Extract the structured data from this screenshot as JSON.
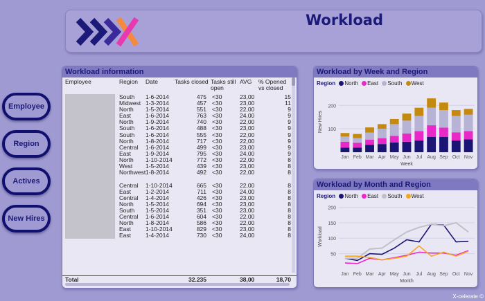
{
  "header": {
    "title": "Workload"
  },
  "colors": {
    "north": "#1a1475",
    "east": "#e829c8",
    "south": "#b6b3d4",
    "west": "#c48a10",
    "line_south": "#c0c0c6",
    "line_west": "#f5a623",
    "accent": "#7f79c2"
  },
  "nav": [
    {
      "label": "Employee"
    },
    {
      "label": "Region"
    },
    {
      "label": "Actives"
    },
    {
      "label": "New Hires"
    }
  ],
  "table": {
    "title": "Workload information",
    "columns": [
      "Employee",
      "Region",
      "Date",
      "Tasks closed",
      "Tasks still open",
      "AVG",
      "% Opened vs closed"
    ],
    "rows": [
      {
        "employee": "",
        "region": "South",
        "date": "1-6-2014",
        "tasks": "475",
        "open": "<30",
        "avg": "23,00",
        "pct": "15"
      },
      {
        "employee": "",
        "region": "Midwest",
        "date": "1-3-2014",
        "tasks": "457",
        "open": "<30",
        "avg": "23,00",
        "pct": "11"
      },
      {
        "employee": "",
        "region": "North",
        "date": "1-5-2014",
        "tasks": "551",
        "open": "<30",
        "avg": "22,00",
        "pct": "9"
      },
      {
        "employee": "",
        "region": "East",
        "date": "1-6-2014",
        "tasks": "763",
        "open": "<30",
        "avg": "24,00",
        "pct": "9"
      },
      {
        "employee": "",
        "region": "North",
        "date": "1-9-2014",
        "tasks": "740",
        "open": "<30",
        "avg": "22,00",
        "pct": "9"
      },
      {
        "employee": "",
        "region": "South",
        "date": "1-6-2014",
        "tasks": "488",
        "open": "<30",
        "avg": "23,00",
        "pct": "9"
      },
      {
        "employee": "",
        "region": "South",
        "date": "1-6-2014",
        "tasks": "555",
        "open": "<30",
        "avg": "22,00",
        "pct": "9"
      },
      {
        "employee": "",
        "region": "North",
        "date": "1-8-2014",
        "tasks": "717",
        "open": "<30",
        "avg": "22,00",
        "pct": "9"
      },
      {
        "employee": "",
        "region": "Central",
        "date": "1-6-2014",
        "tasks": "499",
        "open": "<30",
        "avg": "23,00",
        "pct": "9"
      },
      {
        "employee": "",
        "region": "East",
        "date": "1-9-2014",
        "tasks": "795",
        "open": "<30",
        "avg": "24,00",
        "pct": "9"
      },
      {
        "employee": "",
        "region": "North",
        "date": "1-10-2014",
        "tasks": "772",
        "open": "<30",
        "avg": "22,00",
        "pct": "8"
      },
      {
        "employee": "",
        "region": "West",
        "date": "1-5-2014",
        "tasks": "439",
        "open": "<30",
        "avg": "23,00",
        "pct": "8"
      },
      {
        "employee": "",
        "region": "Northwest",
        "date": "1-8-2014",
        "tasks": "492",
        "open": "<30",
        "avg": "22,00",
        "pct": "8"
      },
      {
        "employee": "",
        "region": "Central",
        "date": "1-10-2014",
        "tasks": "665",
        "open": "<30",
        "avg": "22,00",
        "pct": "8"
      },
      {
        "employee": "",
        "region": "East",
        "date": "1-2-2014",
        "tasks": "711",
        "open": "<30",
        "avg": "24,00",
        "pct": "8"
      },
      {
        "employee": "",
        "region": "Central",
        "date": "1-4-2014",
        "tasks": "426",
        "open": "<30",
        "avg": "23,00",
        "pct": "8"
      },
      {
        "employee": "",
        "region": "North",
        "date": "1-5-2014",
        "tasks": "694",
        "open": "<30",
        "avg": "23,00",
        "pct": "8"
      },
      {
        "employee": "",
        "region": "South",
        "date": "1-5-2014",
        "tasks": "351",
        "open": "<30",
        "avg": "23,00",
        "pct": "8"
      },
      {
        "employee": "",
        "region": "Central",
        "date": "1-6-2014",
        "tasks": "604",
        "open": "<30",
        "avg": "22,00",
        "pct": "8"
      },
      {
        "employee": "",
        "region": "North",
        "date": "1-8-2014",
        "tasks": "586",
        "open": "<30",
        "avg": "22,00",
        "pct": "8"
      },
      {
        "employee": "",
        "region": "East",
        "date": "1-10-2014",
        "tasks": "829",
        "open": "<30",
        "avg": "23,00",
        "pct": "8"
      },
      {
        "employee": "",
        "region": "East",
        "date": "1-4-2014",
        "tasks": "730",
        "open": "<30",
        "avg": "24,00",
        "pct": "8"
      }
    ],
    "total": {
      "label": "Total",
      "tasks": "32.235",
      "avg": "38,00",
      "pct": "18,70"
    }
  },
  "footer": {
    "brand": "X-celerate ©"
  },
  "chart_data": [
    {
      "type": "bar",
      "stacked": true,
      "title": "Workload by Week and Region",
      "legend_title": "Region",
      "xlabel": "Week",
      "ylabel": "New Hires",
      "ylim": [
        0,
        260
      ],
      "yticks": [
        100,
        200
      ],
      "categories": [
        "Jan",
        "Feb",
        "Mar",
        "Apr",
        "May",
        "Jun",
        "Jul",
        "Aug",
        "Sep",
        "Oct",
        "Nov"
      ],
      "series": [
        {
          "name": "North",
          "values": [
            20,
            20,
            32,
            35,
            42,
            45,
            50,
            65,
            65,
            50,
            55
          ]
        },
        {
          "name": "East",
          "values": [
            25,
            20,
            22,
            25,
            28,
            35,
            40,
            50,
            40,
            35,
            35
          ]
        },
        {
          "name": "South",
          "values": [
            22,
            20,
            30,
            40,
            50,
            55,
            65,
            75,
            75,
            70,
            70
          ]
        },
        {
          "name": "West",
          "values": [
            15,
            18,
            22,
            20,
            22,
            30,
            35,
            40,
            32,
            25,
            25
          ]
        }
      ]
    },
    {
      "type": "line",
      "title": "Workload by Month and Region",
      "legend_title": "Region",
      "xlabel": "Month",
      "ylabel": "Workload",
      "ylim": [
        0,
        210
      ],
      "yticks": [
        50,
        100,
        150,
        200
      ],
      "categories": [
        "Jan",
        "Feb",
        "Mar",
        "Apr",
        "May",
        "Jun",
        "Jul",
        "Aug",
        "Sep",
        "Oct",
        "Nov"
      ],
      "series": [
        {
          "name": "North",
          "values": [
            35,
            28,
            50,
            48,
            68,
            95,
            88,
            145,
            142,
            88,
            90
          ]
        },
        {
          "name": "East",
          "values": [
            20,
            18,
            35,
            30,
            37,
            45,
            55,
            52,
            52,
            45,
            60
          ]
        },
        {
          "name": "South",
          "values": [
            35,
            35,
            65,
            68,
            95,
            120,
            135,
            145,
            140,
            150,
            120
          ]
        },
        {
          "name": "West",
          "values": [
            42,
            42,
            38,
            30,
            35,
            42,
            75,
            42,
            55,
            42,
            58
          ]
        }
      ]
    }
  ]
}
